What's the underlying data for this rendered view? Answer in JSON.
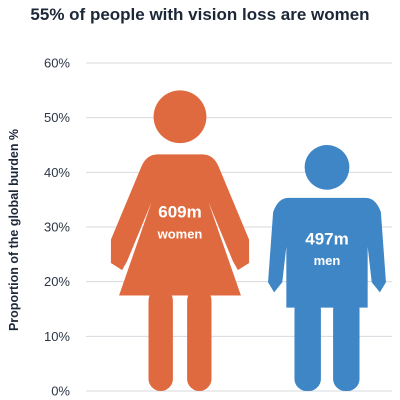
{
  "chart_data": {
    "type": "bar",
    "title": "55% of people with vision loss are women",
    "ylabel": "Proportion of the global burden %",
    "ylim": [
      0,
      60
    ],
    "yticks": [
      "0%",
      "10%",
      "20%",
      "30%",
      "40%",
      "50%",
      "60%"
    ],
    "grid": true,
    "categories": [
      "women",
      "men"
    ],
    "values": [
      55,
      45
    ],
    "labels": [
      {
        "value": "609m",
        "sub": "women",
        "color": "#e06a3f"
      },
      {
        "value": "497m",
        "sub": "men",
        "color": "#3f86c6"
      }
    ]
  }
}
